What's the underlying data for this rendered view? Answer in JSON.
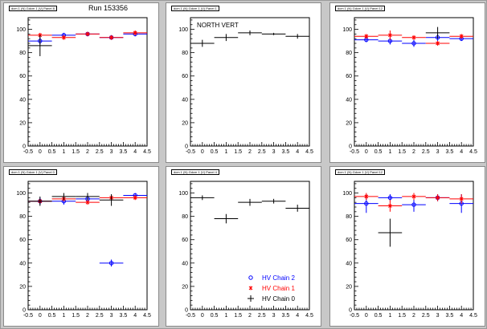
{
  "run_label": "Run 153356",
  "legend": [
    {
      "label": "HV Chain 2",
      "color": "#0000ff",
      "marker": "circle-icon"
    },
    {
      "label": "HV Chain 1",
      "color": "#ff0000",
      "marker": "star-icon"
    },
    {
      "label": "HV Chain 0",
      "color": "#000000",
      "marker": "cross-icon"
    }
  ],
  "chart_data": [
    {
      "type": "scatter",
      "title": "dcm 1 (N) Gdcm 1 (V) Panel 8",
      "annotation": "",
      "xlim": [
        -0.5,
        4.5
      ],
      "ylim": [
        0,
        110
      ],
      "xticks": [
        "-0.5",
        "0",
        "0.5",
        "1",
        "1.5",
        "2",
        "2.5",
        "3",
        "3.5",
        "4",
        "4.5"
      ],
      "yticks": [
        "0",
        "20",
        "40",
        "60",
        "80",
        "100"
      ],
      "series": [
        {
          "name": "HV Chain 2",
          "color": "#0000ff",
          "points": [
            {
              "x": 0,
              "y": 90,
              "ex": 0.5,
              "ey": 3
            },
            {
              "x": 1,
              "y": 95,
              "ex": 0.5,
              "ey": 2
            },
            {
              "x": 2,
              "y": 96,
              "ex": 0.5,
              "ey": 2
            },
            {
              "x": 3,
              "y": 93,
              "ex": 0.5,
              "ey": 2
            },
            {
              "x": 4,
              "y": 96,
              "ex": 0.5,
              "ey": 2
            }
          ]
        },
        {
          "name": "HV Chain 1",
          "color": "#ff0000",
          "points": [
            {
              "x": 0,
              "y": 95,
              "ex": 0.5,
              "ey": 2
            },
            {
              "x": 1,
              "y": 93,
              "ex": 0.5,
              "ey": 2
            },
            {
              "x": 2,
              "y": 96,
              "ex": 0.5,
              "ey": 2
            },
            {
              "x": 3,
              "y": 93,
              "ex": 0.5,
              "ey": 2
            },
            {
              "x": 4,
              "y": 97,
              "ex": 0.5,
              "ey": 2
            }
          ]
        },
        {
          "name": "HV Chain 0",
          "color": "#000000",
          "points": [
            {
              "x": 0,
              "y": 86,
              "ex": 0.5,
              "ey": 9
            }
          ]
        }
      ]
    },
    {
      "type": "scatter",
      "title": "dcm 1 (N) Gdcm 1 (V) Panel 1",
      "annotation": "NORTH VERT",
      "xlim": [
        -0.5,
        4.5
      ],
      "ylim": [
        0,
        110
      ],
      "xticks": [
        "-0.5",
        "0",
        "0.5",
        "1",
        "1.5",
        "2",
        "2.5",
        "3",
        "3.5",
        "4",
        "4.5"
      ],
      "yticks": [
        "0",
        "20",
        "40",
        "60",
        "80",
        "100"
      ],
      "series": [
        {
          "name": "HV Chain 0",
          "color": "#000000",
          "points": [
            {
              "x": 0,
              "y": 88,
              "ex": 0.5,
              "ey": 3
            },
            {
              "x": 1,
              "y": 93,
              "ex": 0.5,
              "ey": 3
            },
            {
              "x": 2,
              "y": 97,
              "ex": 0.5,
              "ey": 2
            },
            {
              "x": 3,
              "y": 96,
              "ex": 0.5,
              "ey": 1
            },
            {
              "x": 4,
              "y": 94,
              "ex": 0.5,
              "ey": 2
            }
          ]
        }
      ]
    },
    {
      "type": "scatter",
      "title": "dcm 1 (N) Gdcm 1 (V) Panel 12",
      "annotation": "",
      "xlim": [
        -0.5,
        4.5
      ],
      "ylim": [
        0,
        110
      ],
      "xticks": [
        "-0.5",
        "0",
        "0.5",
        "1",
        "1.5",
        "2",
        "2.5",
        "3",
        "3.5",
        "4",
        "4.5"
      ],
      "yticks": [
        "0",
        "20",
        "40",
        "60",
        "80",
        "100"
      ],
      "series": [
        {
          "name": "HV Chain 2",
          "color": "#0000ff",
          "points": [
            {
              "x": 0,
              "y": 91,
              "ex": 0.5,
              "ey": 2
            },
            {
              "x": 1,
              "y": 90,
              "ex": 0.5,
              "ey": 3
            },
            {
              "x": 2,
              "y": 88,
              "ex": 0.5,
              "ey": 3
            },
            {
              "x": 3,
              "y": 93,
              "ex": 0.5,
              "ey": 3
            },
            {
              "x": 4,
              "y": 92,
              "ex": 0.5,
              "ey": 2
            }
          ]
        },
        {
          "name": "HV Chain 1",
          "color": "#ff0000",
          "points": [
            {
              "x": 0,
              "y": 94,
              "ex": 0.5,
              "ey": 2
            },
            {
              "x": 1,
              "y": 95,
              "ex": 0.5,
              "ey": 4
            },
            {
              "x": 2,
              "y": 93,
              "ex": 0.5,
              "ey": 2
            },
            {
              "x": 3,
              "y": 88,
              "ex": 0.5,
              "ey": 2
            },
            {
              "x": 4,
              "y": 94,
              "ex": 0.5,
              "ey": 2
            }
          ]
        },
        {
          "name": "HV Chain 0",
          "color": "#000000",
          "points": [
            {
              "x": 3,
              "y": 97,
              "ex": 0.5,
              "ey": 5
            }
          ]
        }
      ]
    },
    {
      "type": "scatter",
      "title": "dcm 1 (N) Gdcm 1 (V) Panel 0",
      "annotation": "",
      "xlim": [
        -0.5,
        4.5
      ],
      "ylim": [
        0,
        110
      ],
      "xticks": [
        "-0.5",
        "0",
        "0.5",
        "1",
        "1.5",
        "2",
        "2.5",
        "3",
        "3.5",
        "4",
        "4.5"
      ],
      "yticks": [
        "0",
        "20",
        "40",
        "60",
        "80",
        "100"
      ],
      "series": [
        {
          "name": "HV Chain 2",
          "color": "#0000ff",
          "points": [
            {
              "x": 0,
              "y": 93,
              "ex": 0.5,
              "ey": 3
            },
            {
              "x": 1,
              "y": 93,
              "ex": 0.5,
              "ey": 3
            },
            {
              "x": 2,
              "y": 95,
              "ex": 0.5,
              "ey": 3
            },
            {
              "x": 3,
              "y": 40,
              "ex": 0.5,
              "ey": 3
            },
            {
              "x": 4,
              "y": 98,
              "ex": 0.5,
              "ey": 2
            }
          ]
        },
        {
          "name": "HV Chain 1",
          "color": "#ff0000",
          "points": [
            {
              "x": 0,
              "y": 93,
              "ex": 0.5,
              "ey": 2
            },
            {
              "x": 1,
              "y": 95,
              "ex": 0.5,
              "ey": 2
            },
            {
              "x": 2,
              "y": 92,
              "ex": 0.5,
              "ey": 2
            },
            {
              "x": 3,
              "y": 96,
              "ex": 0.5,
              "ey": 2
            },
            {
              "x": 4,
              "y": 96,
              "ex": 0.5,
              "ey": 2
            }
          ]
        },
        {
          "name": "HV Chain 0",
          "color": "#000000",
          "points": [
            {
              "x": 0,
              "y": 93,
              "ex": 0.5,
              "ey": 4
            },
            {
              "x": 1,
              "y": 97,
              "ex": 0.5,
              "ey": 3
            },
            {
              "x": 2,
              "y": 97,
              "ex": 0.5,
              "ey": 3
            },
            {
              "x": 3,
              "y": 94,
              "ex": 0.5,
              "ey": 5
            }
          ]
        }
      ]
    },
    {
      "type": "scatter",
      "title": "dcm 1 (N) Gdcm 1 (V) Panel 4",
      "annotation": "",
      "xlim": [
        -0.5,
        4.5
      ],
      "ylim": [
        0,
        110
      ],
      "xticks": [
        "-0.5",
        "0",
        "0.5",
        "1",
        "1.5",
        "2",
        "2.5",
        "3",
        "3.5",
        "4",
        "4.5"
      ],
      "yticks": [
        "0",
        "20",
        "40",
        "60",
        "80",
        "100"
      ],
      "series": [
        {
          "name": "HV Chain 0",
          "color": "#000000",
          "points": [
            {
              "x": 0,
              "y": 96,
              "ex": 0.5,
              "ey": 2
            },
            {
              "x": 1,
              "y": 78,
              "ex": 0.5,
              "ey": 4
            },
            {
              "x": 2,
              "y": 92,
              "ex": 0.5,
              "ey": 3
            },
            {
              "x": 3,
              "y": 93,
              "ex": 0.5,
              "ey": 2
            },
            {
              "x": 4,
              "y": 87,
              "ex": 0.5,
              "ey": 3
            }
          ]
        }
      ]
    },
    {
      "type": "scatter",
      "title": "dcm 1 (N) Gdcm 1 (V) Panel 12",
      "annotation": "",
      "xlim": [
        -0.5,
        4.5
      ],
      "ylim": [
        0,
        110
      ],
      "xticks": [
        "-0.5",
        "0",
        "0.5",
        "1",
        "1.5",
        "2",
        "2.5",
        "3",
        "3.5",
        "4",
        "4.5"
      ],
      "yticks": [
        "0",
        "20",
        "40",
        "60",
        "80",
        "100"
      ],
      "series": [
        {
          "name": "HV Chain 2",
          "color": "#0000ff",
          "points": [
            {
              "x": 0,
              "y": 91,
              "ex": 0.5,
              "ey": 8
            },
            {
              "x": 1,
              "y": 96,
              "ex": 0.5,
              "ey": 3
            },
            {
              "x": 2,
              "y": 90,
              "ex": 0.5,
              "ey": 6
            },
            {
              "x": 3,
              "y": 96,
              "ex": 0.5,
              "ey": 3
            },
            {
              "x": 4,
              "y": 91,
              "ex": 0.5,
              "ey": 8
            }
          ]
        },
        {
          "name": "HV Chain 1",
          "color": "#ff0000",
          "points": [
            {
              "x": 0,
              "y": 97,
              "ex": 0.5,
              "ey": 3
            },
            {
              "x": 1,
              "y": 89,
              "ex": 0.5,
              "ey": 5
            },
            {
              "x": 2,
              "y": 97,
              "ex": 0.5,
              "ey": 3
            },
            {
              "x": 3,
              "y": 96,
              "ex": 0.5,
              "ey": 3
            },
            {
              "x": 4,
              "y": 95,
              "ex": 0.5,
              "ey": 4
            }
          ]
        },
        {
          "name": "HV Chain 0",
          "color": "#000000",
          "points": [
            {
              "x": 1,
              "y": 66,
              "ex": 0.5,
              "ey": 12
            }
          ]
        }
      ]
    }
  ]
}
